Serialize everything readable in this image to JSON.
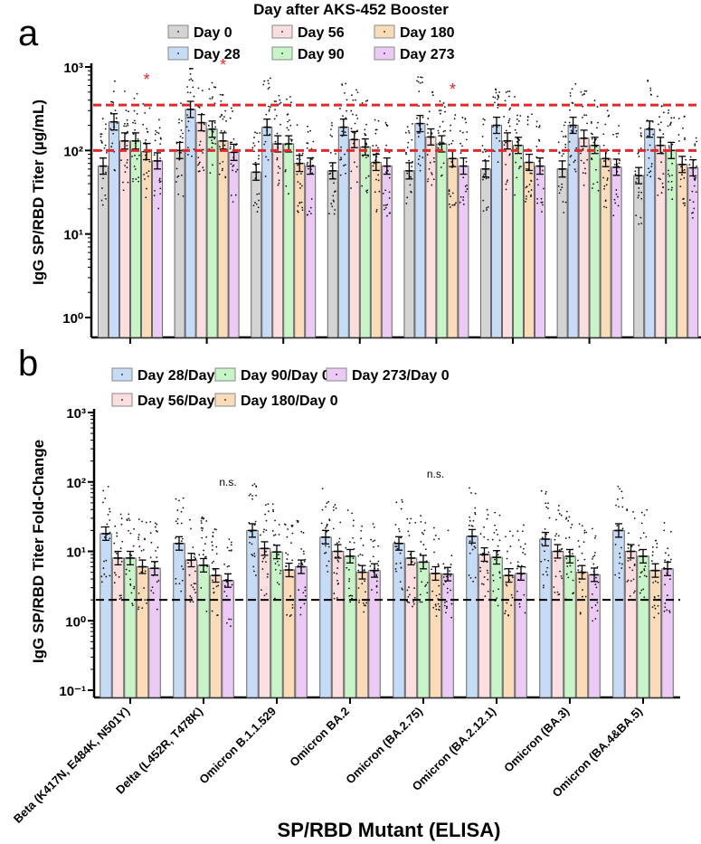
{
  "chart_data": [
    {
      "panel_label": "a",
      "type": "bar",
      "scale": "log",
      "title": "Day after AKS-452 Booster",
      "ylabel": "IgG SP/RBD Titer (µg/mL)",
      "xlabel": "",
      "ylim": [
        1,
        1000
      ],
      "yticks": [
        "10⁰",
        "10¹",
        "10²",
        "10³"
      ],
      "ytick_values": [
        1,
        10,
        100,
        1000
      ],
      "legend_placement": "top",
      "categories": [
        "Beta (K417N, E484K, N501Y)",
        "Delta (L452R, T478K)",
        "Omicron B.1.1.529",
        "Omicron BA.2",
        "Omicron (BA.2.75)",
        "Omicron (BA.2.12.1)",
        "Omicron (BA.3)",
        "Omicron (BA.4&BA.5)"
      ],
      "series": [
        {
          "name": "Day 0",
          "color": "#d4d4d4",
          "values": [
            65,
            100,
            55,
            57,
            57,
            60,
            60,
            50
          ]
        },
        {
          "name": "Day 28",
          "color": "#c6dbf5",
          "values": [
            220,
            310,
            190,
            190,
            210,
            200,
            200,
            180
          ]
        },
        {
          "name": "Day 56",
          "color": "#fcdede",
          "values": [
            130,
            215,
            120,
            135,
            145,
            130,
            140,
            115
          ]
        },
        {
          "name": "Day 90",
          "color": "#c8f5c8",
          "values": [
            130,
            180,
            120,
            110,
            120,
            115,
            115,
            100
          ]
        },
        {
          "name": "Day 180",
          "color": "#fbdcb8",
          "values": [
            97,
            130,
            70,
            72,
            80,
            72,
            80,
            68
          ]
        },
        {
          "name": "Day 273",
          "color": "#ebcbf5",
          "values": [
            75,
            95,
            65,
            65,
            65,
            65,
            63,
            62
          ]
        }
      ],
      "reference_lines": [
        {
          "value": 100,
          "style": "dashed",
          "color": "#e8262a"
        },
        {
          "value": 350,
          "style": "dashed",
          "color": "#e8262a"
        }
      ],
      "annotations": [
        {
          "text": "*",
          "category": "Beta (K417N, E484K, N501Y)",
          "series": "Day 180",
          "color": "#e8262a"
        },
        {
          "text": "*",
          "category": "Delta (L452R, T478K)",
          "series": "Day 180",
          "color": "#e8262a"
        },
        {
          "text": "*",
          "category": "Omicron (BA.2.75)",
          "series": "Day 180",
          "color": "#e8262a"
        }
      ]
    },
    {
      "panel_label": "b",
      "type": "bar",
      "scale": "log",
      "title": "",
      "ylabel": "IgG SP/RBD Titer Fold-Change",
      "xlabel": "SP/RBD Mutant (ELISA)",
      "ylim": [
        0.1,
        1000
      ],
      "yticks": [
        "10⁻¹",
        "10⁰",
        "10¹",
        "10²",
        "10³"
      ],
      "ytick_values": [
        0.1,
        1,
        10,
        100,
        1000
      ],
      "legend_placement": "top",
      "categories": [
        "Beta (K417N, E484K, N501Y)",
        "Delta (L452R, T478K)",
        "Omicron B.1.1.529",
        "Omicron BA.2",
        "Omicron (BA.2.75)",
        "Omicron (BA.2.12.1)",
        "Omicron (BA.3)",
        "Omicron (BA.4&BA.5)"
      ],
      "series": [
        {
          "name": "Day 28/Day 0",
          "color": "#c6dbf5",
          "values": [
            18,
            13,
            20,
            16,
            13,
            16.5,
            15,
            20
          ]
        },
        {
          "name": "Day 56/Day 0",
          "color": "#fcdede",
          "values": [
            8,
            7.5,
            11,
            10,
            8,
            9,
            10,
            10
          ]
        },
        {
          "name": "Day 90/Day 0",
          "color": "#c8f5c8",
          "values": [
            8,
            6.3,
            9.8,
            8.5,
            7,
            8.2,
            8.5,
            8.5
          ]
        },
        {
          "name": "Day 180/Day 0",
          "color": "#fbdcb8",
          "values": [
            6,
            4.5,
            5.4,
            5,
            4.8,
            4.5,
            5,
            5.3
          ]
        },
        {
          "name": "Day 273/Day 0",
          "color": "#ebcbf5",
          "values": [
            5.7,
            3.8,
            6,
            5.3,
            4.7,
            4.8,
            4.6,
            5.6
          ]
        }
      ],
      "reference_lines": [
        {
          "value": 2,
          "style": "dashed",
          "color": "#000000"
        }
      ],
      "annotations": [
        {
          "text": "n.s.",
          "category": "Delta (L452R, T478K)",
          "series": "Day 273/Day 0",
          "color": "#000000"
        },
        {
          "text": "n.s.",
          "category": "Omicron (BA.2.75)",
          "series": "Day 180/Day 0",
          "color": "#000000"
        }
      ]
    }
  ]
}
